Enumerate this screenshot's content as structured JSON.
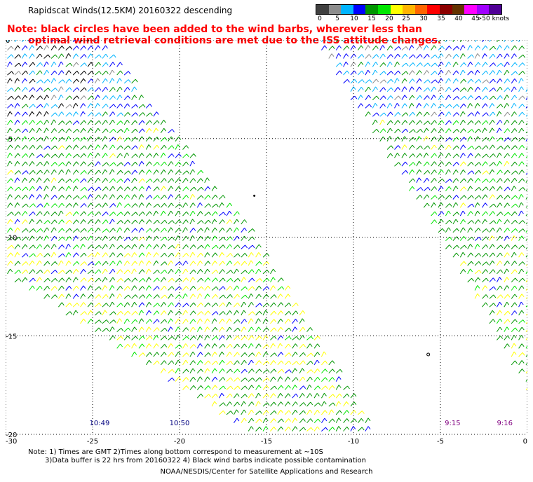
{
  "title": "Rapidscat Winds(12.5KM) 20160322 descending",
  "note_line1": "Note: black circles have been added to the wind barbs, wherever less than",
  "note_line2": "optimal wind retrieval conditions are met due to the ISS attitude changes.",
  "colors": {
    "note": "#ff0000",
    "grid": "#000000",
    "time_left": "#000080",
    "time_right": "#800080"
  },
  "speed_scale": {
    "unit": "knots",
    "labels": [
      "0",
      "5",
      "10",
      "15",
      "20",
      "25",
      "30",
      "35",
      "40",
      "45",
      ">50 knots"
    ],
    "swatches": [
      "#404040",
      "#8c8c8c",
      "#00b4ff",
      "#0000ff",
      "#009600",
      "#00e600",
      "#ffff00",
      "#ffb400",
      "#ff6400",
      "#ff0000",
      "#8c0000",
      "#643200",
      "#ff00ff",
      "#a000ff",
      "#500096"
    ]
  },
  "map": {
    "xlim": [
      -30,
      0
    ],
    "ylim": [
      -20,
      0
    ],
    "x_ticks": [
      "-30",
      "-25",
      "-20",
      "-15",
      "-10",
      "-5",
      "0"
    ],
    "x_tick_values": [
      -30,
      -25,
      -20,
      -15,
      -10,
      -5,
      0
    ],
    "y_ticks": [
      "0",
      "-5",
      "-10",
      "-15",
      "-20"
    ],
    "y_tick_values": [
      0,
      -5,
      -10,
      -15,
      -20
    ],
    "grid": "dotted",
    "swaths": [
      {
        "name": "west-swath",
        "polygon": [
          [
            -30,
            0
          ],
          [
            -24.7,
            0
          ],
          [
            -15.8,
            -10
          ],
          [
            -8.8,
            -20
          ],
          [
            -16,
            -20
          ],
          [
            -30,
            -12
          ]
        ]
      },
      {
        "name": "east-swath",
        "polygon": [
          [
            -12.4,
            0
          ],
          [
            -0.3,
            0
          ],
          [
            0,
            -3
          ],
          [
            0,
            -18
          ],
          [
            -4.8,
            -10.5
          ]
        ]
      }
    ],
    "time_labels": [
      {
        "text": "10:49",
        "x": -24.6,
        "y": -19.4,
        "color": "time_left"
      },
      {
        "text": "10:50",
        "x": -20,
        "y": -19.4,
        "color": "time_left"
      },
      {
        "text": "9:15",
        "x": -4.3,
        "y": -19.4,
        "color": "time_right"
      },
      {
        "text": "9:16",
        "x": -1.3,
        "y": -19.4,
        "color": "time_right"
      }
    ]
  },
  "footer": {
    "line1": "Note: 1) Times are GMT 2)Times along bottom correspond to measurement at ~10S",
    "line2": "3)Data buffer is 22 hrs from 20160322 4) Black wind barbs indicate possible contamination",
    "credit": "NOAA/NESDIS/Center for Satellite Applications and Research"
  }
}
